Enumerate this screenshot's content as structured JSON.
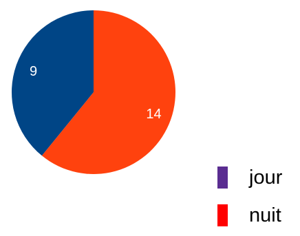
{
  "chart_data": {
    "type": "pie",
    "slices": [
      {
        "label": "jour",
        "value": 9,
        "slice_color": "#004586",
        "legend_color": "#5a2d91"
      },
      {
        "label": "nuit",
        "value": 14,
        "slice_color": "#ff420e",
        "legend_color": "#ff0000"
      }
    ],
    "start_angle_deg": 0,
    "direction": "counterclockwise",
    "legend_position": "bottom-right",
    "show_values": true
  }
}
